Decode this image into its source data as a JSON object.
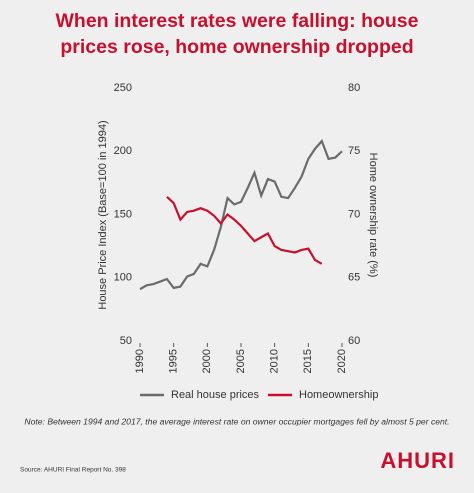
{
  "chart_data": {
    "type": "line",
    "title_lines": [
      "When interest rates were falling: house",
      "prices rose, home ownership dropped"
    ],
    "ylabel": "House Price Index (Base=100 in 1994)",
    "y2label": "Home ownership rate (%)",
    "xlim": [
      1990,
      2020
    ],
    "xticks": [
      1990,
      1995,
      2000,
      2005,
      2010,
      2015,
      2020
    ],
    "ylim": [
      50,
      250
    ],
    "yticks": [
      50,
      100,
      150,
      200,
      250
    ],
    "y2lim": [
      60,
      80
    ],
    "y2ticks": [
      60,
      65,
      70,
      75,
      80
    ],
    "series": [
      {
        "name": "Real house prices",
        "color": "#6b6b6b",
        "x": [
          1990,
          1991,
          1992,
          1993,
          1994,
          1995,
          1996,
          1997,
          1998,
          1999,
          2000,
          2001,
          2002,
          2003,
          2004,
          2005,
          2006,
          2007,
          2008,
          2009,
          2010,
          2011,
          2012,
          2013,
          2014,
          2015,
          2016,
          2017,
          2018,
          2019,
          2020
        ],
        "values": [
          91,
          94,
          95,
          97,
          99,
          92,
          93,
          101,
          103,
          111,
          109,
          122,
          140,
          163,
          158,
          160,
          171,
          183,
          165,
          178,
          176,
          164,
          163,
          171,
          180,
          194,
          202,
          208,
          194,
          195,
          200
        ]
      },
      {
        "name": "Homeownership",
        "color": "#c8102e",
        "axis": "y2",
        "x": [
          1994,
          1995,
          1996,
          1997,
          1998,
          1999,
          2000,
          2001,
          2002,
          2003,
          2004,
          2005,
          2006,
          2007,
          2008,
          2009,
          2010,
          2011,
          2012,
          2013,
          2014,
          2015,
          2016,
          2017
        ],
        "values": [
          71.4,
          70.9,
          69.6,
          70.2,
          70.3,
          70.5,
          70.3,
          69.9,
          69.3,
          70.0,
          69.6,
          69.1,
          68.5,
          67.9,
          68.2,
          68.5,
          67.5,
          67.2,
          67.1,
          67.0,
          67.2,
          67.3,
          66.4,
          66.1
        ]
      }
    ],
    "note": "Note: Between 1994 and 2017, the average interest rate on owner occupier mortgages fell by almost 5 per cent.",
    "source": "Source: AHURI Final Report No. 398",
    "logo": "AHURI"
  }
}
